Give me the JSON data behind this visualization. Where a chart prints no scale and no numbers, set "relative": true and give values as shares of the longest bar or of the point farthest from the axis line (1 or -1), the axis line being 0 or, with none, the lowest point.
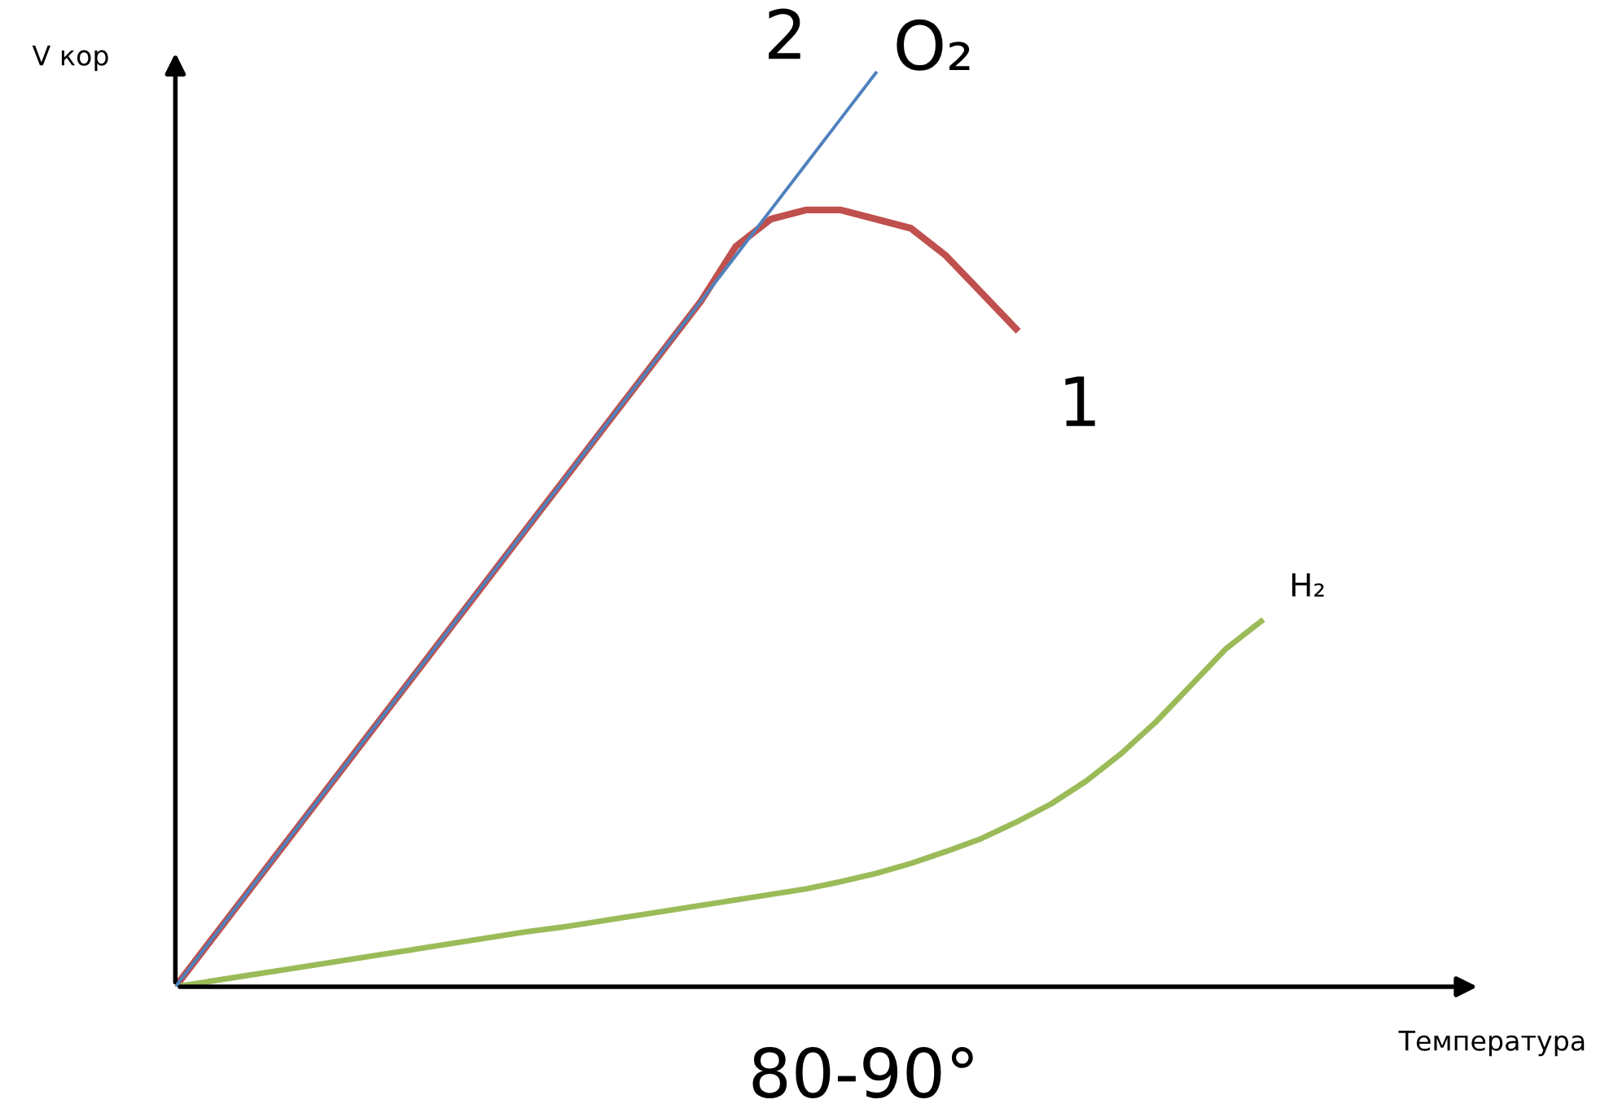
{
  "chart_data": {
    "type": "line",
    "relative": true,
    "xlabel": "Температура",
    "ylabel": "V кор",
    "categories": [
      null,
      null,
      null,
      null,
      null,
      null,
      null,
      null,
      null,
      null,
      null,
      null,
      null,
      null,
      null,
      null,
      null,
      null,
      null,
      null,
      null,
      null,
      null,
      null,
      null,
      null,
      null,
      null,
      null,
      null,
      null,
      null
    ],
    "series": [
      {
        "name": "2",
        "color": "#4f81bd",
        "values": [
          0,
          0.05,
          0.1,
          0.15,
          0.2,
          0.25,
          0.3,
          0.35,
          0.4,
          0.45,
          0.5,
          0.55,
          0.6,
          0.65,
          0.7,
          0.75,
          0.8,
          0.85,
          0.9,
          0.95,
          1,
          null,
          null,
          null,
          null,
          null,
          null,
          null,
          null,
          null,
          null,
          null
        ]
      },
      {
        "name": "1",
        "color": "#c0504d",
        "values": [
          0,
          0.05,
          0.1,
          0.15,
          0.2,
          0.25,
          0.3,
          0.35,
          0.4,
          0.45,
          0.5,
          0.55,
          0.6,
          0.65,
          0.7,
          0.75,
          0.81,
          0.84,
          0.85,
          0.85,
          0.84,
          0.83,
          0.8,
          0.76,
          0.72,
          null,
          null,
          null,
          null,
          null,
          null,
          null
        ]
      },
      {
        "name": "H₂",
        "color": "#9bbb59",
        "values": [
          0,
          0.006,
          0.012,
          0.018,
          0.024,
          0.03,
          0.036,
          0.042,
          0.048,
          0.054,
          0.06,
          0.065,
          0.071,
          0.077,
          0.083,
          0.089,
          0.095,
          0.101,
          0.107,
          0.115,
          0.124,
          0.135,
          0.148,
          0.162,
          0.18,
          0.2,
          0.225,
          0.255,
          0.29,
          0.33,
          0.37,
          0.4
        ]
      }
    ],
    "annotations": [
      "O₂",
      "80-90°"
    ],
    "legend": false,
    "line_style": "solid",
    "marker": "none"
  }
}
